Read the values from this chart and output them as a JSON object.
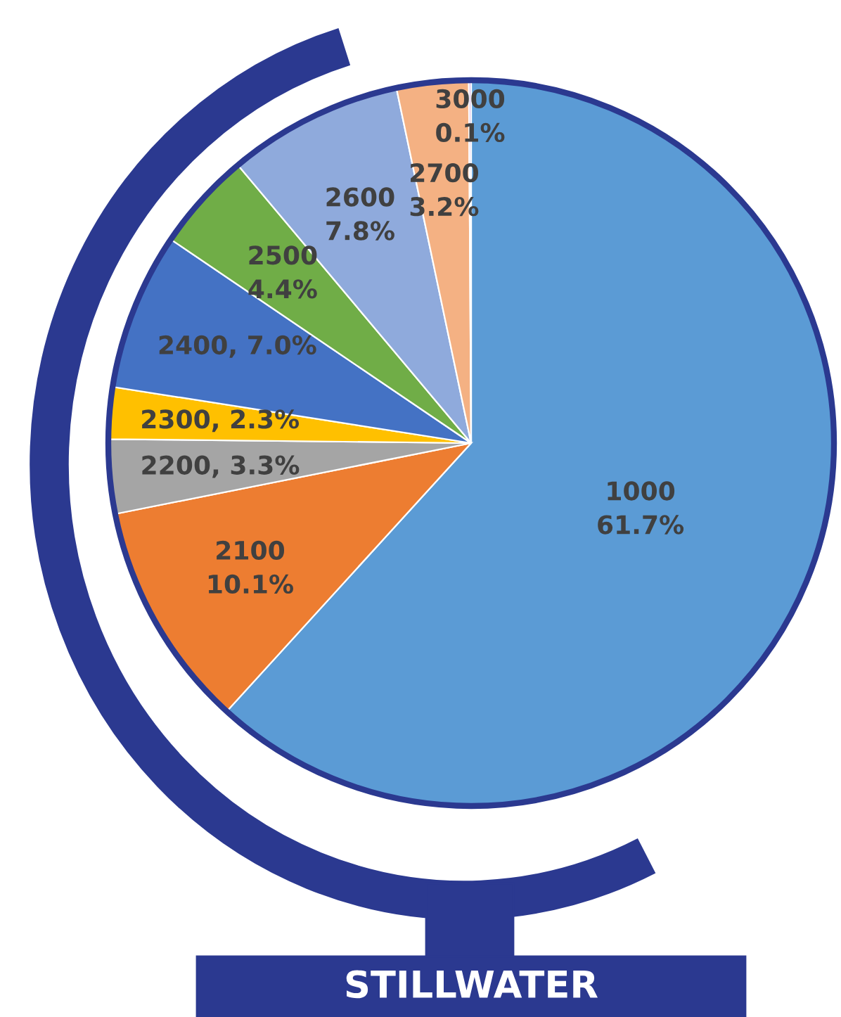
{
  "chart_data": {
    "type": "pie",
    "title": "STILLWATER",
    "categories": [
      "1000",
      "2100",
      "2200",
      "2300",
      "2400",
      "2500",
      "2600",
      "2700",
      "3000"
    ],
    "values": [
      61.7,
      10.1,
      3.3,
      2.3,
      7.0,
      4.4,
      7.8,
      3.2,
      0.1
    ],
    "colors": [
      "#5b9bd5",
      "#ed7d31",
      "#a5a5a5",
      "#ffc000",
      "#4472c4",
      "#70ad47",
      "#8faadc",
      "#f4b183",
      "#c9a0dc"
    ],
    "value_labels": [
      "61.7%",
      "10.1%",
      ", 3.3%",
      ", 2.3%",
      ", 7.0%",
      "4.4%",
      "7.8%",
      "3.2%",
      "0.1%"
    ],
    "legend": false
  }
}
